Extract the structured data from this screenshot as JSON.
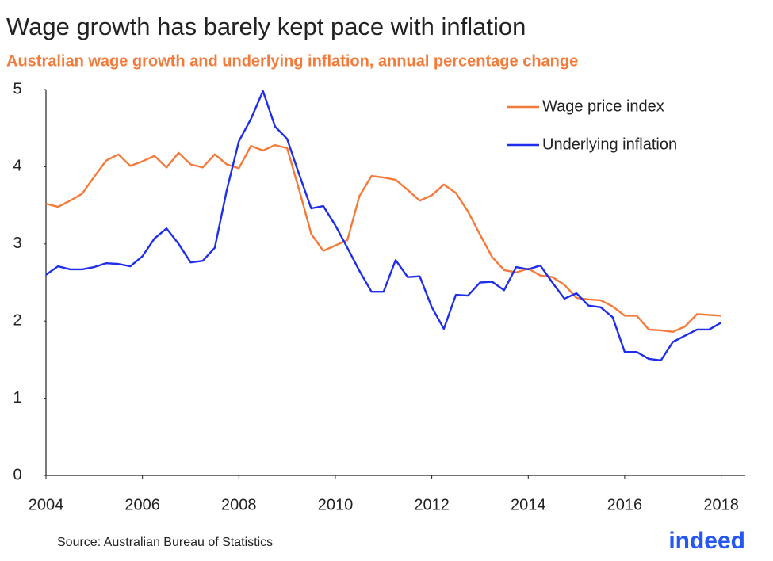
{
  "chart_data": {
    "type": "line",
    "title": "Wage growth has barely kept pace with inflation",
    "subtitle": "Australian wage growth and underlying inflation, annual percentage change",
    "source": "Source: Australian Bureau of Statistics",
    "brand": "indeed",
    "x": [
      2004,
      2004.25,
      2004.5,
      2004.75,
      2005,
      2005.25,
      2005.5,
      2005.75,
      2006,
      2006.25,
      2006.5,
      2006.75,
      2007,
      2007.25,
      2007.5,
      2007.75,
      2008,
      2008.25,
      2008.5,
      2008.75,
      2009,
      2009.25,
      2009.5,
      2009.75,
      2010,
      2010.25,
      2010.5,
      2010.75,
      2011,
      2011.25,
      2011.5,
      2011.75,
      2012,
      2012.25,
      2012.5,
      2012.75,
      2013,
      2013.25,
      2013.5,
      2013.75,
      2014,
      2014.25,
      2014.5,
      2014.75,
      2015,
      2015.25,
      2015.5,
      2015.75,
      2016,
      2016.25,
      2016.5,
      2016.75,
      2017,
      2017.25,
      2017.5,
      2017.75,
      2018
    ],
    "series": [
      {
        "name": "Wage price index",
        "color": "#f47a3a",
        "values": [
          3.52,
          3.48,
          3.56,
          3.65,
          3.87,
          4.08,
          4.16,
          4.01,
          4.07,
          4.14,
          3.99,
          4.18,
          4.03,
          3.99,
          4.16,
          4.03,
          3.98,
          4.27,
          4.21,
          4.28,
          4.24,
          3.7,
          3.13,
          2.91,
          2.98,
          3.05,
          3.62,
          3.88,
          3.86,
          3.83,
          3.7,
          3.56,
          3.63,
          3.77,
          3.66,
          3.42,
          3.12,
          2.83,
          2.66,
          2.63,
          2.68,
          2.59,
          2.57,
          2.47,
          2.3,
          2.28,
          2.27,
          2.19,
          2.07,
          2.07,
          1.89,
          1.88,
          1.86,
          1.93,
          2.09,
          2.08,
          2.07
        ]
      },
      {
        "name": "Underlying inflation",
        "color": "#1f2eea",
        "values": [
          2.6,
          2.71,
          2.67,
          2.67,
          2.7,
          2.75,
          2.74,
          2.71,
          2.84,
          3.07,
          3.2,
          3.0,
          2.76,
          2.78,
          2.95,
          3.7,
          4.33,
          4.62,
          4.98,
          4.52,
          4.36,
          3.9,
          3.46,
          3.49,
          3.24,
          2.95,
          2.65,
          2.38,
          2.38,
          2.79,
          2.57,
          2.58,
          2.18,
          1.9,
          2.34,
          2.33,
          2.5,
          2.51,
          2.4,
          2.7,
          2.67,
          2.72,
          2.5,
          2.29,
          2.36,
          2.2,
          2.18,
          2.05,
          1.6,
          1.6,
          1.51,
          1.49,
          1.73,
          1.81,
          1.89,
          1.89,
          1.98
        ]
      }
    ],
    "xlim": [
      2004,
      2018.5
    ],
    "xticks": [
      2004,
      2006,
      2008,
      2010,
      2012,
      2014,
      2016,
      2018
    ],
    "ylim": [
      0,
      5
    ],
    "yticks": [
      0,
      1,
      2,
      3,
      4,
      5
    ],
    "grid": false,
    "legend": "top-right"
  }
}
